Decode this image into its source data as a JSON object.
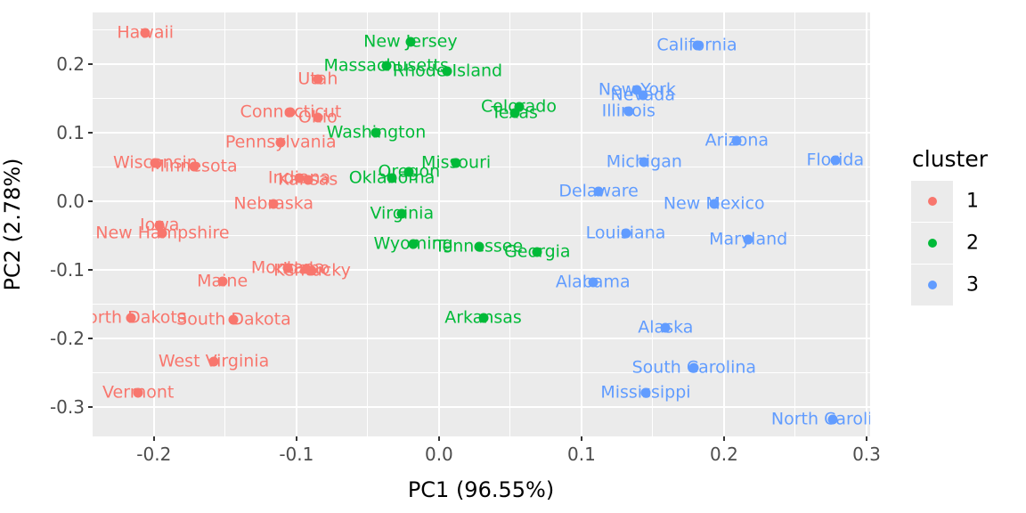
{
  "figure": {
    "background": "#FFFFFF",
    "panel_background": "#EBEBEB",
    "grid_color": "#FFFFFF",
    "axis_text_color": "#4D4D4D",
    "axis_title_color": "#000000"
  },
  "chart_data": {
    "type": "scatter",
    "title": "",
    "xlabel": "PC1 (96.55%)",
    "ylabel": "PC2 (2.78%)",
    "xlim": [
      -0.243,
      0.3025
    ],
    "ylim": [
      -0.3425,
      0.2755
    ],
    "x_ticks": [
      -0.2,
      -0.1,
      0.0,
      0.1,
      0.2,
      0.3
    ],
    "x_tick_labels": [
      "-0.2",
      "-0.1",
      "0.0",
      "0.1",
      "0.2",
      "0.3"
    ],
    "y_ticks": [
      0.2,
      0.1,
      0.0,
      -0.1,
      -0.2,
      -0.3
    ],
    "y_tick_labels": [
      "0.2",
      "0.1",
      "0.0",
      "-0.1",
      "-0.2",
      "-0.3"
    ],
    "x_minor_ticks": [
      -0.15,
      -0.05,
      0.05,
      0.15,
      0.25
    ],
    "y_minor_ticks": [
      0.25,
      0.15,
      0.05,
      -0.05,
      -0.15,
      -0.25
    ],
    "grid": true,
    "legend": {
      "title": "cluster",
      "position": "right",
      "entries": [
        {
          "label": "1",
          "color": "#F8766D"
        },
        {
          "label": "2",
          "color": "#00BA38"
        },
        {
          "label": "3",
          "color": "#619CFF"
        }
      ]
    },
    "series": [
      {
        "name": "1",
        "color": "#F8766D",
        "points": [
          {
            "label": "Hawaii",
            "x": -0.206,
            "y": 0.245
          },
          {
            "label": "Utah",
            "x": -0.085,
            "y": 0.178
          },
          {
            "label": "Connecticut",
            "x": -0.104,
            "y": 0.13
          },
          {
            "label": "Ohio",
            "x": -0.085,
            "y": 0.122
          },
          {
            "label": "Pennsylvania",
            "x": -0.111,
            "y": 0.086
          },
          {
            "label": "Wisconsin",
            "x": -0.199,
            "y": 0.056
          },
          {
            "label": "Minnesota",
            "x": -0.172,
            "y": 0.051
          },
          {
            "label": "Indiana",
            "x": -0.098,
            "y": 0.034
          },
          {
            "label": "Kansas",
            "x": -0.092,
            "y": 0.032
          },
          {
            "label": "Nebraska",
            "x": -0.116,
            "y": -0.004
          },
          {
            "label": "Iowa",
            "x": -0.196,
            "y": -0.035
          },
          {
            "label": "New Hampshire",
            "x": -0.194,
            "y": -0.047
          },
          {
            "label": "Montana",
            "x": -0.106,
            "y": -0.097
          },
          {
            "label": "Idaho",
            "x": -0.093,
            "y": -0.099
          },
          {
            "label": "Kentucky",
            "x": -0.089,
            "y": -0.101
          },
          {
            "label": "Maine",
            "x": -0.152,
            "y": -0.116
          },
          {
            "label": "North Dakota",
            "x": -0.216,
            "y": -0.17
          },
          {
            "label": "South Dakota",
            "x": -0.144,
            "y": -0.173
          },
          {
            "label": "West Virginia",
            "x": -0.158,
            "y": -0.234
          },
          {
            "label": "Vermont",
            "x": -0.211,
            "y": -0.279
          }
        ]
      },
      {
        "name": "2",
        "color": "#00BA38",
        "points": [
          {
            "label": "New Jersey",
            "x": -0.02,
            "y": 0.233
          },
          {
            "label": "Massachusetts",
            "x": -0.037,
            "y": 0.198
          },
          {
            "label": "Rhode Island",
            "x": 0.006,
            "y": 0.19
          },
          {
            "label": "Colorado",
            "x": 0.056,
            "y": 0.138
          },
          {
            "label": "Texas",
            "x": 0.053,
            "y": 0.129
          },
          {
            "label": "Washington",
            "x": -0.044,
            "y": 0.1
          },
          {
            "label": "Missouri",
            "x": 0.012,
            "y": 0.056
          },
          {
            "label": "Oregon",
            "x": -0.021,
            "y": 0.043
          },
          {
            "label": "Oklahoma",
            "x": -0.033,
            "y": 0.034
          },
          {
            "label": "Virginia",
            "x": -0.026,
            "y": -0.018
          },
          {
            "label": "Wyoming",
            "x": -0.018,
            "y": -0.062
          },
          {
            "label": "Tennessee",
            "x": 0.028,
            "y": -0.066
          },
          {
            "label": "Georgia",
            "x": 0.069,
            "y": -0.074
          },
          {
            "label": "Arkansas",
            "x": 0.031,
            "y": -0.17
          }
        ]
      },
      {
        "name": "3",
        "color": "#619CFF",
        "points": [
          {
            "label": "California",
            "x": 0.181,
            "y": 0.227
          },
          {
            "label": "New York",
            "x": 0.139,
            "y": 0.162
          },
          {
            "label": "Nevada",
            "x": 0.143,
            "y": 0.155
          },
          {
            "label": "Illinois",
            "x": 0.133,
            "y": 0.131
          },
          {
            "label": "Arizona",
            "x": 0.209,
            "y": 0.088
          },
          {
            "label": "Florida",
            "x": 0.278,
            "y": 0.06
          },
          {
            "label": "Michigan",
            "x": 0.144,
            "y": 0.057
          },
          {
            "label": "Delaware",
            "x": 0.112,
            "y": 0.014
          },
          {
            "label": "New Mexico",
            "x": 0.193,
            "y": -0.004
          },
          {
            "label": "Louisiana",
            "x": 0.131,
            "y": -0.047
          },
          {
            "label": "Maryland",
            "x": 0.217,
            "y": -0.055
          },
          {
            "label": "Alabama",
            "x": 0.108,
            "y": -0.118
          },
          {
            "label": "Alaska",
            "x": 0.159,
            "y": -0.184
          },
          {
            "label": "South Carolina",
            "x": 0.179,
            "y": -0.242
          },
          {
            "label": "Mississippi",
            "x": 0.145,
            "y": -0.279
          },
          {
            "label": "North Carolina",
            "x": 0.276,
            "y": -0.318
          }
        ]
      }
    ]
  }
}
